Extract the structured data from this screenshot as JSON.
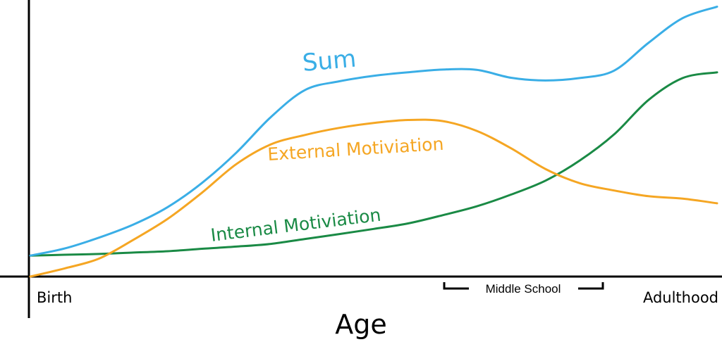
{
  "chart_data": {
    "type": "line",
    "xlabel": "Age",
    "ylabel": "",
    "x_tick_labels": [
      "Birth",
      "Adulthood"
    ],
    "xlim": [
      0,
      100
    ],
    "ylim": [
      0,
      100
    ],
    "grid": false,
    "series": [
      {
        "name": "Sum",
        "color": "#3aaee6",
        "x": [
          0,
          5,
          10,
          15,
          20,
          25,
          30,
          35,
          40,
          45,
          50,
          55,
          60,
          65,
          70,
          75,
          80,
          85,
          90,
          95,
          100
        ],
        "y": [
          7.7,
          10.3,
          14.3,
          19.1,
          25.5,
          34.4,
          45.5,
          58.5,
          68.5,
          71.7,
          73.7,
          75.0,
          76.0,
          75.9,
          73.0,
          72.0,
          72.9,
          75.6,
          85.8,
          94.9,
          99.1
        ]
      },
      {
        "name": "External Motiviation",
        "color": "#f5a623",
        "x": [
          0,
          5,
          10,
          15,
          20,
          25,
          30,
          35,
          40,
          45,
          50,
          55,
          60,
          65,
          70,
          75,
          80,
          85,
          90,
          95,
          100
        ],
        "y": [
          0.0,
          3.0,
          6.6,
          13.5,
          21.2,
          30.8,
          41.3,
          48.5,
          52.0,
          54.6,
          56.4,
          57.5,
          57.1,
          53.5,
          47.1,
          39.5,
          34.3,
          31.6,
          29.5,
          28.6,
          26.9
        ]
      },
      {
        "name": "Internal Motiviation",
        "color": "#1a8a45",
        "x": [
          0,
          5,
          10,
          15,
          20,
          25,
          30,
          35,
          40,
          45,
          50,
          55,
          60,
          65,
          70,
          75,
          80,
          85,
          90,
          95,
          100
        ],
        "y": [
          7.7,
          8.0,
          8.3,
          8.8,
          9.3,
          10.2,
          11.0,
          12.0,
          13.8,
          15.6,
          17.5,
          19.5,
          22.5,
          25.8,
          30.1,
          35.2,
          42.6,
          52.2,
          64.8,
          72.9,
          75.0
        ]
      }
    ],
    "annotations": [
      {
        "text": "Sum",
        "series": "Sum",
        "x": 35,
        "y": 80
      },
      {
        "text": "External Motiviation",
        "series": "External Motiviation",
        "x": 37,
        "y": 51
      },
      {
        "text": "Internal Motiviation",
        "series": "Internal Motiviation",
        "x": 26,
        "y": 15
      },
      {
        "text": "Middle School",
        "x_start": 60,
        "x_end": 83
      }
    ]
  }
}
